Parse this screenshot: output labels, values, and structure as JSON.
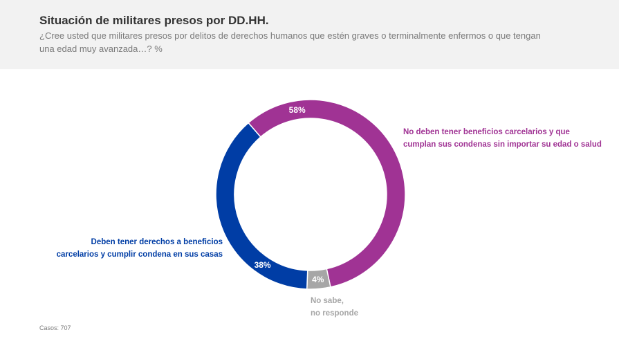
{
  "header": {
    "title": "Situación de militares presos por DD.HH.",
    "subtitle": "¿Cree usted que militares presos por delitos de derechos humanos que estén graves o terminalmente enfermos o que tengan una edad muy avanzada…? %"
  },
  "chart_data": {
    "type": "pie",
    "style": "donut",
    "title": "Situación de militares presos por DD.HH.",
    "slices": [
      {
        "key": "no_beneficios",
        "value": 58,
        "pct_label": "58%",
        "label_lines": [
          "No deben tener beneficios carcelarios y que",
          "cumplan sus condenas sin importar su edad o salud"
        ],
        "color": "#a03394"
      },
      {
        "key": "no_sabe",
        "value": 4,
        "pct_label": "4%",
        "label_lines": [
          "No sabe,",
          "no responde"
        ],
        "color": "#a6a6a6"
      },
      {
        "key": "derechos_beneficios",
        "value": 38,
        "pct_label": "38%",
        "label_lines": [
          "Deben tener derechos a beneficios",
          "carcelarios y cumplir condena en sus casas"
        ],
        "color": "#003da5"
      }
    ]
  },
  "footer": {
    "cases": "Casos: 707"
  }
}
